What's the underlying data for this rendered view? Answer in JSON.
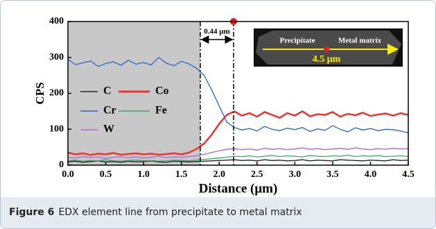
{
  "chart_data": {
    "type": "line",
    "x_label": "Distance (μm)",
    "y_label": "CPS",
    "x": [
      0.0,
      0.1,
      0.2,
      0.3,
      0.4,
      0.5,
      0.6,
      0.7,
      0.8,
      0.9,
      1.0,
      1.1,
      1.2,
      1.3,
      1.4,
      1.5,
      1.6,
      1.7,
      1.8,
      1.9,
      2.0,
      2.1,
      2.2,
      2.3,
      2.4,
      2.5,
      2.6,
      2.7,
      2.8,
      2.9,
      3.0,
      3.1,
      3.2,
      3.3,
      3.4,
      3.5,
      3.6,
      3.7,
      3.8,
      3.9,
      4.0,
      4.1,
      4.2,
      4.3,
      4.4,
      4.5
    ],
    "series": [
      {
        "name": "C",
        "color": "#222222",
        "values": [
          9,
          11,
          8,
          10,
          12,
          9,
          10,
          8,
          11,
          9,
          10,
          12,
          9,
          8,
          11,
          10,
          9,
          10,
          11,
          12,
          13,
          14,
          15,
          13,
          14,
          12,
          15,
          13,
          14,
          12,
          13,
          15,
          12,
          14,
          13,
          12,
          15,
          14,
          13,
          12,
          14,
          13,
          12,
          15,
          13,
          14
        ]
      },
      {
        "name": "Co",
        "color": "#ee3333",
        "values": [
          35,
          30,
          33,
          28,
          32,
          30,
          34,
          29,
          31,
          33,
          30,
          32,
          29,
          31,
          33,
          30,
          35,
          45,
          60,
          85,
          115,
          140,
          150,
          138,
          145,
          135,
          148,
          140,
          132,
          145,
          138,
          150,
          136,
          142,
          140,
          148,
          135,
          143,
          139,
          146,
          137,
          141,
          144,
          138,
          145,
          140
        ]
      },
      {
        "name": "Cr",
        "color": "#2266cc",
        "values": [
          295,
          280,
          285,
          290,
          275,
          283,
          288,
          278,
          292,
          281,
          286,
          279,
          300,
          284,
          277,
          289,
          282,
          270,
          250,
          210,
          165,
          120,
          105,
          98,
          102,
          95,
          108,
          100,
          96,
          103,
          99,
          105,
          94,
          101,
          97,
          110,
          100,
          93,
          104,
          98,
          102,
          96,
          100,
          99,
          95,
          90
        ]
      },
      {
        "name": "Fe",
        "color": "#33aa66",
        "values": [
          12,
          14,
          11,
          13,
          12,
          15,
          12,
          11,
          13,
          14,
          12,
          13,
          11,
          12,
          14,
          13,
          12,
          14,
          16,
          18,
          20,
          22,
          25,
          24,
          26,
          23,
          25,
          27,
          24,
          26,
          25,
          23,
          27,
          25,
          24,
          26,
          25,
          28,
          24,
          26,
          25,
          27,
          24,
          25,
          26,
          24
        ]
      },
      {
        "name": "W",
        "color": "#aa66dd",
        "values": [
          22,
          20,
          24,
          21,
          23,
          19,
          22,
          24,
          21,
          23,
          20,
          22,
          25,
          21,
          23,
          22,
          24,
          26,
          30,
          35,
          40,
          44,
          46,
          43,
          45,
          42,
          47,
          44,
          46,
          43,
          45,
          48,
          44,
          46,
          43,
          45,
          47,
          44,
          48,
          45,
          43,
          46,
          44,
          47,
          45,
          46
        ]
      }
    ],
    "xlim": [
      0,
      4.5
    ],
    "ylim": [
      0,
      400
    ],
    "xticks": [
      {
        "value": 0,
        "label": "0.0"
      },
      {
        "value": 0.5,
        "label": "0.5"
      },
      {
        "value": 1,
        "label": "1.0"
      },
      {
        "value": 1.5,
        "label": "1.5"
      },
      {
        "value": 2,
        "label": "2.0"
      },
      {
        "value": 2.5,
        "label": "2.5"
      },
      {
        "value": 3,
        "label": "3.0"
      },
      {
        "value": 3.5,
        "label": "3.5"
      },
      {
        "value": 4,
        "label": "4.0"
      },
      {
        "value": 4.5,
        "label": "4.5"
      }
    ],
    "yticks": [
      0,
      100,
      200,
      300,
      400
    ],
    "boundaries": [
      1.75,
      2.19
    ],
    "boundary_label": "0.44 μm",
    "inset": {
      "left_label": "Precipitate",
      "right_label": "Metal matrix",
      "scale": "4.5 μm"
    }
  },
  "caption": {
    "label": "Figure 6",
    "text": "EDX element line from precipitate to metal matrix"
  }
}
